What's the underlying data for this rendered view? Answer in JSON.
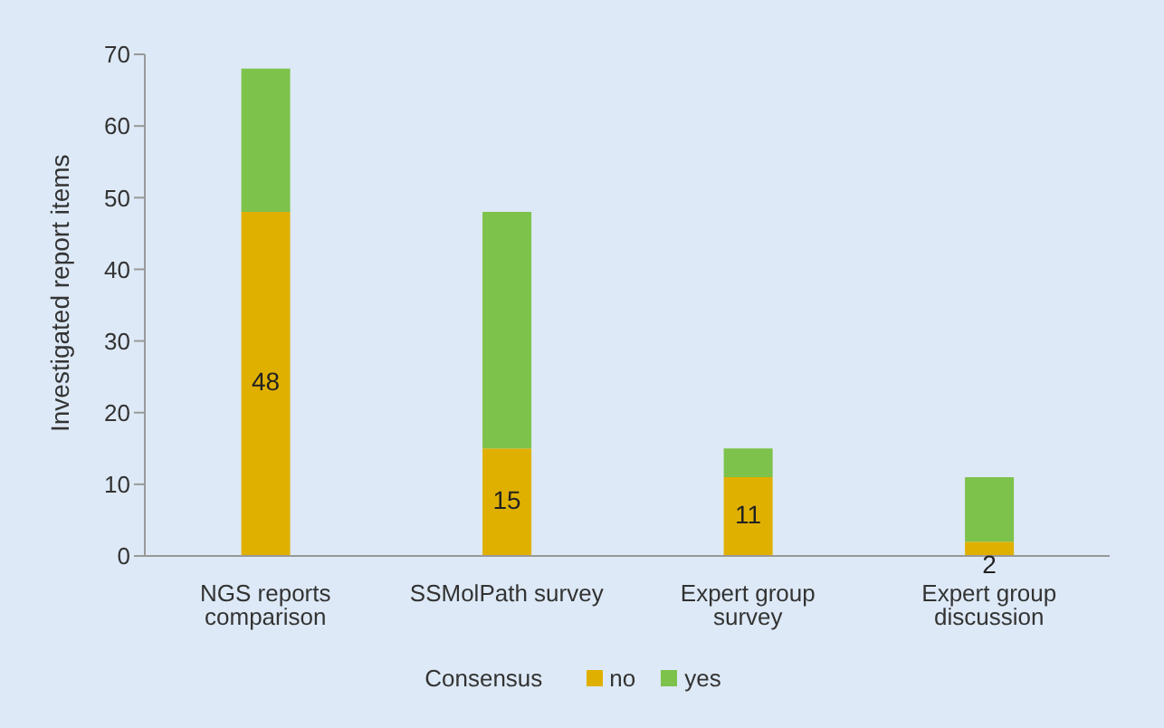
{
  "chart_data": {
    "type": "bar",
    "stacked": true,
    "ylabel": "Investigated report items",
    "legend_title": "Consensus",
    "legend": "bottom",
    "categories": [
      "NGS reports comparison",
      "SSMolPath survey",
      "Expert group survey",
      "Expert group discussion"
    ],
    "series": [
      {
        "name": "no",
        "color": "#e0b000",
        "values": [
          48,
          15,
          11,
          2
        ],
        "value_labels": [
          "48",
          "15",
          "11",
          "2"
        ]
      },
      {
        "name": "yes",
        "color": "#7dc24b",
        "values": [
          20,
          33,
          4,
          9
        ]
      }
    ],
    "ylim": [
      0,
      70
    ],
    "yticks": [
      0,
      10,
      20,
      30,
      40,
      50,
      60,
      70
    ],
    "grid": false
  }
}
